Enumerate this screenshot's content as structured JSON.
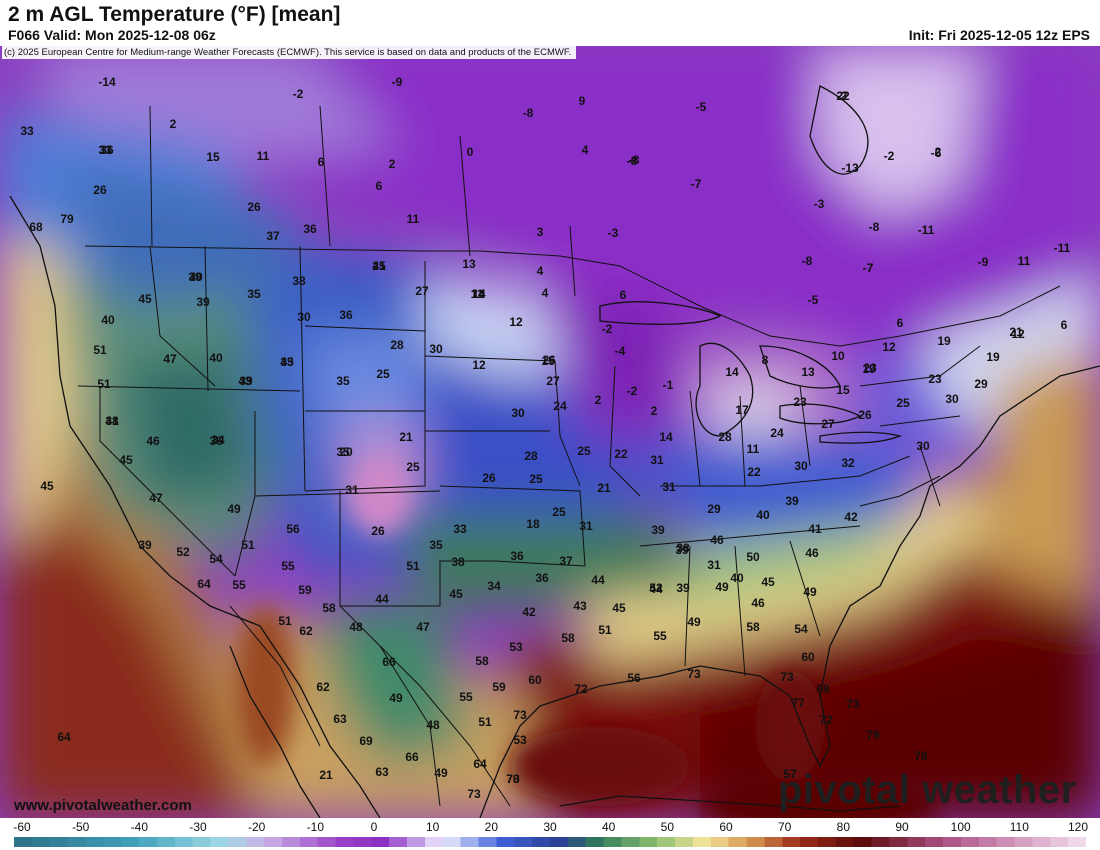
{
  "header": {
    "title": "2 m AGL Temperature (°F) [mean]",
    "valid": "F066 Valid: Mon 2025-12-08 06z",
    "init": "Init: Fri 2025-12-05 12z EPS"
  },
  "copyright": "(c) 2025 European Centre for Medium-range Weather Forecasts (ECMWF). This service is based on data and products of the ECMWF.",
  "website": "www.pivotalweather.com",
  "brand": "pivotal weather",
  "colorbar": {
    "ticks": [
      "-60",
      "-50",
      "-40",
      "-30",
      "-20",
      "-10",
      "0",
      "10",
      "20",
      "30",
      "40",
      "50",
      "60",
      "70",
      "80",
      "90",
      "100",
      "110",
      "120"
    ],
    "stops": [
      {
        "value": -60,
        "color": "#2b6f86"
      },
      {
        "value": -40,
        "color": "#3fa0b8"
      },
      {
        "value": -25,
        "color": "#9fd8e6"
      },
      {
        "value": -18,
        "color": "#c9b3e6"
      },
      {
        "value": -5,
        "color": "#9a3fc6"
      },
      {
        "value": 2,
        "color": "#8a2fc2"
      },
      {
        "value": 12,
        "color": "#f0f0ff"
      },
      {
        "value": 22,
        "color": "#3f5fd6"
      },
      {
        "value": 32,
        "color": "#2a3f8f"
      },
      {
        "value": 38,
        "color": "#2f7a5a"
      },
      {
        "value": 48,
        "color": "#8fbf72"
      },
      {
        "value": 56,
        "color": "#f3e59a"
      },
      {
        "value": 64,
        "color": "#d3914e"
      },
      {
        "value": 72,
        "color": "#9a2a1a"
      },
      {
        "value": 82,
        "color": "#5a0a0a"
      },
      {
        "value": 95,
        "color": "#a64a7a"
      },
      {
        "value": 110,
        "color": "#d8a3c6"
      },
      {
        "value": 120,
        "color": "#f3e2ee"
      }
    ]
  },
  "map_labels": [
    "-14",
    "-2",
    "-9",
    "-8",
    "9",
    "-5",
    "-2",
    "-8",
    "-7",
    "-8",
    "-2",
    "2",
    "-6",
    "-13",
    "-7",
    "-11",
    "-9",
    "-11",
    "11",
    "-7",
    "2",
    "11",
    "15",
    "6",
    "2",
    "0",
    "4",
    "-8",
    "-3",
    "-3",
    "-8",
    "-5",
    "6",
    "-4",
    "-2",
    "2",
    "-2",
    "-1",
    "2",
    "6",
    "6",
    "6",
    "11",
    "3",
    "13",
    "4",
    "22",
    "37",
    "36",
    "21",
    "27",
    "14",
    "4",
    "12",
    "14",
    "12",
    "21",
    "26",
    "35",
    "12",
    "19",
    "23",
    "23",
    "19",
    "30",
    "29",
    "33",
    "26",
    "36",
    "43",
    "45",
    "40",
    "39",
    "35",
    "38",
    "30",
    "36",
    "39",
    "40",
    "51",
    "51",
    "41",
    "47",
    "40",
    "39",
    "43",
    "35",
    "25",
    "28",
    "30",
    "30",
    "24",
    "15",
    "12",
    "27",
    "14",
    "11",
    "14",
    "8",
    "10",
    "13",
    "15",
    "19",
    "26",
    "25",
    "23",
    "27",
    "24",
    "22",
    "17",
    "11",
    "25",
    "21",
    "20",
    "28",
    "25",
    "26",
    "28",
    "22",
    "30",
    "32",
    "30",
    "39",
    "46",
    "34",
    "35",
    "25",
    "21",
    "25",
    "31",
    "18",
    "31",
    "29",
    "40",
    "42",
    "39",
    "38",
    "45",
    "47",
    "45",
    "49",
    "51",
    "56",
    "31",
    "26",
    "31",
    "33",
    "35",
    "36",
    "34",
    "39",
    "38",
    "46",
    "46",
    "41",
    "39",
    "52",
    "54",
    "64",
    "55",
    "55",
    "59",
    "51",
    "38",
    "37",
    "36",
    "31",
    "40",
    "39",
    "44",
    "49",
    "50",
    "45",
    "46",
    "49",
    "51",
    "58",
    "48",
    "44",
    "47",
    "45",
    "42",
    "44",
    "43",
    "45",
    "52",
    "49",
    "58",
    "54",
    "58",
    "53",
    "51",
    "55",
    "60",
    "64",
    "62",
    "63",
    "69",
    "66",
    "49",
    "48",
    "58",
    "55",
    "59",
    "60",
    "56",
    "72",
    "73",
    "73",
    "68",
    "72",
    "73",
    "73",
    "77",
    "62",
    "63",
    "73",
    "66",
    "49",
    "51",
    "64",
    "53",
    "70",
    "73",
    "57",
    "79",
    "78",
    "79",
    "45",
    "21",
    "68",
    "36",
    "33",
    "26",
    "30"
  ]
}
